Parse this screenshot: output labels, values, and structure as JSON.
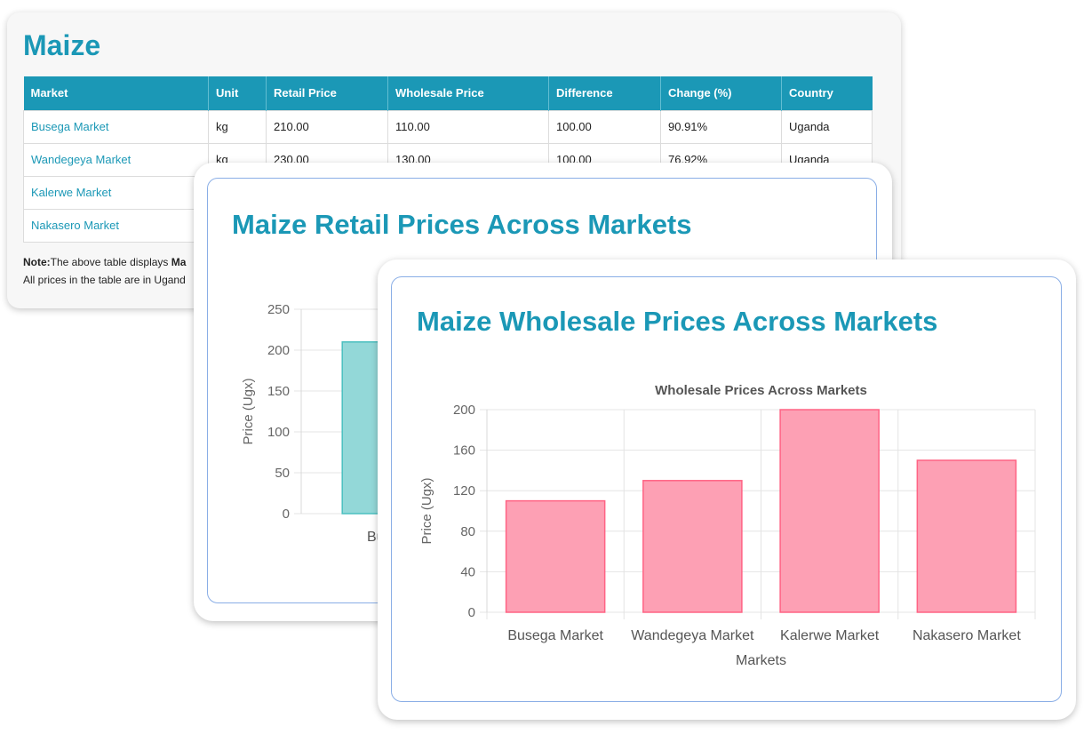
{
  "table_card": {
    "title": "Maize",
    "columns": [
      "Market",
      "Unit",
      "Retail Price",
      "Wholesale Price",
      "Difference",
      "Change (%)",
      "Country"
    ],
    "rows": [
      [
        "Busega Market",
        "kg",
        "210.00",
        "110.00",
        "100.00",
        "90.91%",
        "Uganda"
      ],
      [
        "Wandegeya Market",
        "kg",
        "230.00",
        "130.00",
        "100.00",
        "76.92%",
        "Uganda"
      ],
      [
        "Kalerwe Market",
        "",
        "",
        "",
        "",
        "",
        ""
      ],
      [
        "Nakasero Market",
        "",
        "",
        "",
        "",
        "",
        ""
      ]
    ],
    "note_label": "Note:",
    "note_text_1": "The above table displays ",
    "note_bold": "Ma",
    "note_text_2": "All prices in the table are in Ugand"
  },
  "retail_chart": {
    "heading": "Maize Retail Prices Across Markets",
    "colors": {
      "fill": "#93d8d8",
      "stroke": "#4bc0c0"
    },
    "chart_data": {
      "type": "bar",
      "categories": [
        "Busega Market"
      ],
      "series": [
        {
          "values": [
            210
          ]
        }
      ],
      "ylabel": "Price (Ugx)",
      "ylim": [
        0,
        250
      ],
      "yticks": [
        0,
        50,
        100,
        150,
        200,
        250
      ],
      "visible_category_label": "Busega M",
      "grid": true
    }
  },
  "wholesale_chart": {
    "heading": "Maize Wholesale Prices Across Markets",
    "colors": {
      "fill": "#fda0b4",
      "stroke": "#ff6384"
    },
    "chart_data": {
      "type": "bar",
      "title": "Wholesale Prices Across Markets",
      "categories": [
        "Busega Market",
        "Wandegeya Market",
        "Kalerwe Market",
        "Nakasero Market"
      ],
      "series": [
        {
          "values": [
            110,
            130,
            200,
            150
          ]
        }
      ],
      "xlabel": "Markets",
      "ylabel": "Price (Ugx)",
      "ylim": [
        0,
        200
      ],
      "yticks": [
        0,
        40,
        80,
        120,
        160,
        200
      ],
      "grid": true
    }
  }
}
